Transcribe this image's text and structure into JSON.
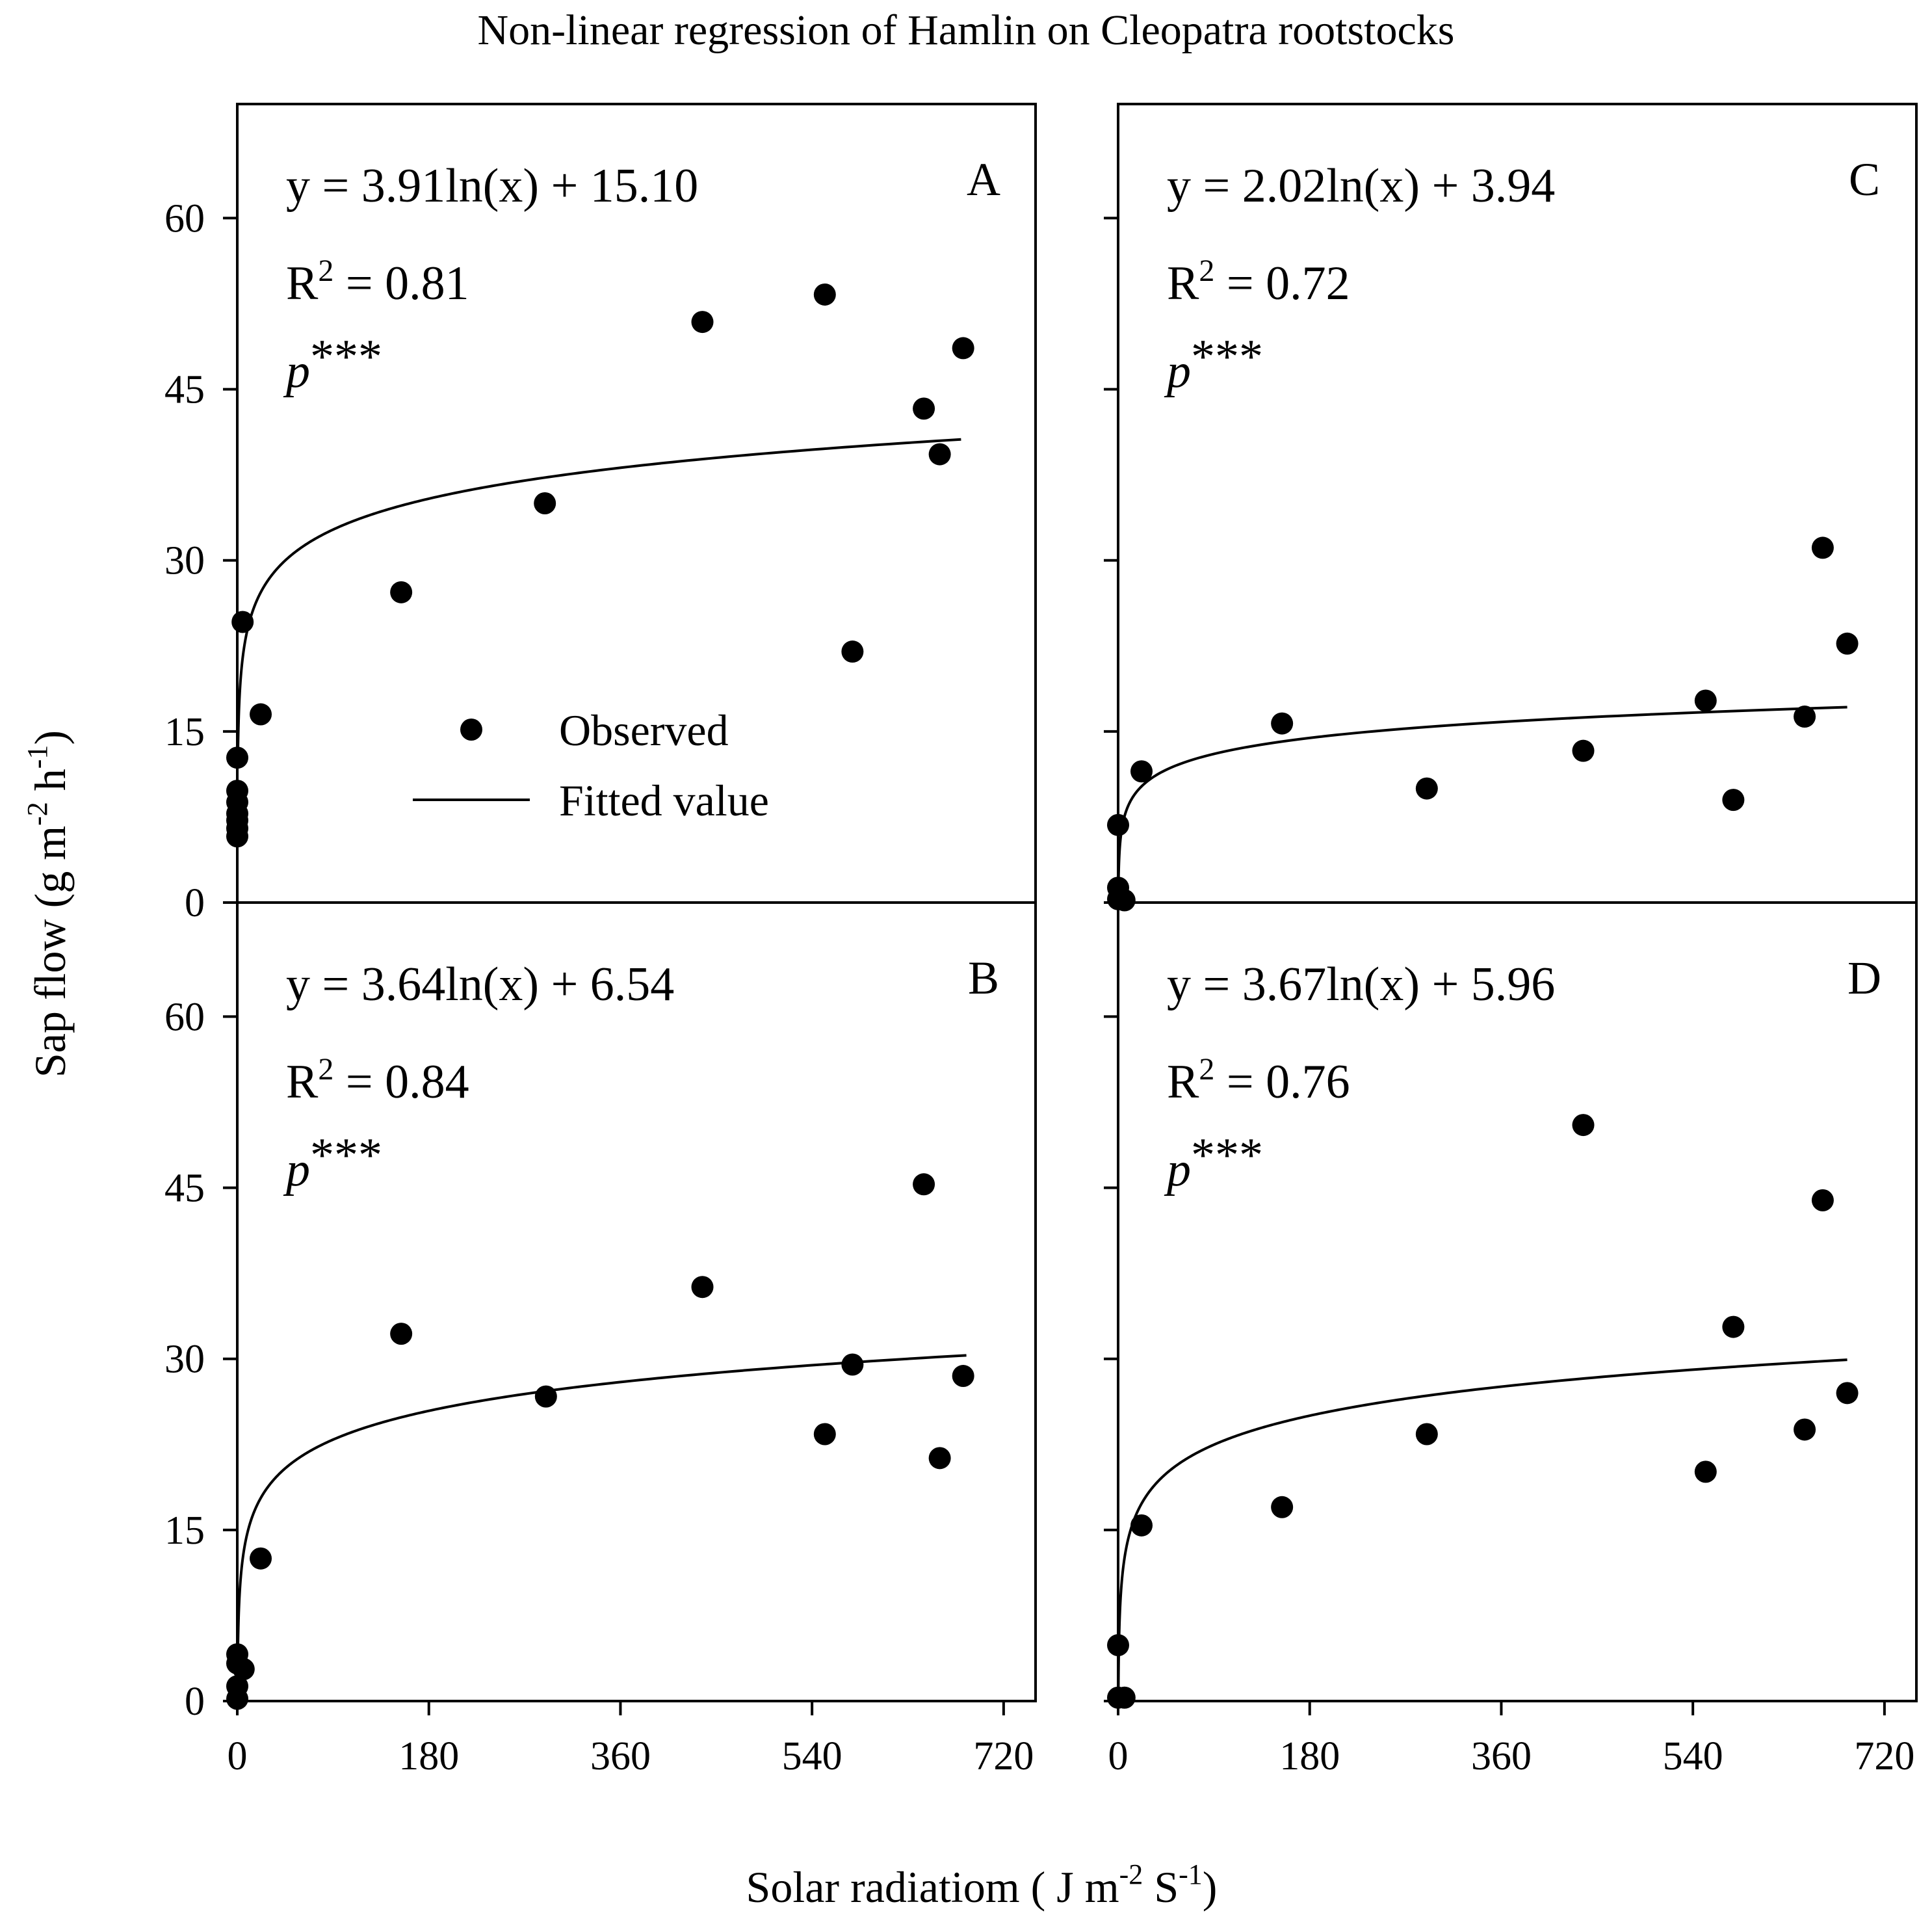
{
  "chart_data": {
    "type": "scatter",
    "title": "Non-linear regression of Hamlin on Cleopatra rootstocks",
    "ylabel": "Sap flow (g m",
    "ylabel_sup1": "-2",
    "ylabel_mid": " h",
    "ylabel_sup2": "-1",
    "ylabel_end": ")",
    "xlabel": "Solar radiatiom ( J m",
    "xlabel_sup1": "-2",
    "xlabel_mid": " S",
    "xlabel_sup2": "-1",
    "xlabel_end": ")",
    "xlim": [
      0,
      750
    ],
    "ylim": [
      0,
      70
    ],
    "xticks": [
      0,
      180,
      360,
      540,
      720
    ],
    "xtick_labels": [
      "0",
      "180",
      "360",
      "540",
      "720"
    ],
    "yticks": [
      0,
      15,
      30,
      45,
      60
    ],
    "ytick_labels": [
      "0",
      "15",
      "30",
      "45",
      "60"
    ],
    "legend": {
      "observed": "Observed",
      "fitted": "Fitted value",
      "placement": "panel-A center"
    },
    "panels": [
      {
        "letter": "A",
        "equation": "y = 3.91ln(x) + 15.10",
        "r2_prefix": "R",
        "r2_sup": "2",
        "r2_value": " = 0.81",
        "p_label": "p",
        "p_stars": "***",
        "a": 3.91,
        "b": 15.1,
        "fit_x_range": [
          0.6,
          680
        ],
        "points": [
          [
            0,
            5.8
          ],
          [
            0,
            6.5
          ],
          [
            0,
            7.2
          ],
          [
            0,
            7.8
          ],
          [
            0,
            8.8
          ],
          [
            0,
            9.8
          ],
          [
            0,
            12.7
          ],
          [
            5,
            24.6
          ],
          [
            22,
            16.5
          ],
          [
            154,
            27.2
          ],
          [
            289,
            35.0
          ],
          [
            437,
            50.9
          ],
          [
            552,
            53.3
          ],
          [
            578,
            22.0
          ],
          [
            645,
            43.3
          ],
          [
            660,
            39.3
          ],
          [
            682,
            48.6
          ]
        ]
      },
      {
        "letter": "B",
        "equation": "y = 3.64ln(x) + 6.54",
        "r2_prefix": "R",
        "r2_sup": "2",
        "r2_value": " = 0.84",
        "p_label": "p",
        "p_stars": "***",
        "a": 3.64,
        "b": 6.54,
        "fit_x_range": [
          0.2,
          685
        ],
        "points": [
          [
            0,
            0.2
          ],
          [
            0,
            1.3
          ],
          [
            0,
            3.3
          ],
          [
            0,
            4.1
          ],
          [
            6,
            2.8
          ],
          [
            22,
            12.5
          ],
          [
            154,
            32.2
          ],
          [
            290,
            26.7
          ],
          [
            437,
            36.3
          ],
          [
            552,
            23.4
          ],
          [
            578,
            29.5
          ],
          [
            645,
            45.3
          ],
          [
            660,
            21.3
          ],
          [
            682,
            28.5
          ]
        ]
      },
      {
        "letter": "C",
        "equation": "y = 2.02ln(x) + 3.94",
        "r2_prefix": "R",
        "r2_sup": "2",
        "r2_value": " = 0.72",
        "p_label": "p",
        "p_stars": "***",
        "a": 2.02,
        "b": 3.94,
        "fit_x_range": [
          0.15,
          685
        ],
        "points": [
          [
            0,
            0.3
          ],
          [
            0,
            1.3
          ],
          [
            0,
            6.8
          ],
          [
            6,
            0.2
          ],
          [
            22,
            11.5
          ],
          [
            154,
            15.7
          ],
          [
            290,
            10.0
          ],
          [
            437,
            13.3
          ],
          [
            552,
            17.7
          ],
          [
            578,
            9.0
          ],
          [
            645,
            16.3
          ],
          [
            662,
            31.1
          ],
          [
            685,
            22.7
          ]
        ]
      },
      {
        "letter": "D",
        "equation": "y = 3.67ln(x) + 5.96",
        "r2_prefix": "R",
        "r2_sup": "2",
        "r2_value": " = 0.76",
        "p_label": "p",
        "p_stars": "***",
        "a": 3.67,
        "b": 5.96,
        "fit_x_range": [
          0.2,
          685
        ],
        "points": [
          [
            0,
            0.3
          ],
          [
            0,
            4.9
          ],
          [
            6,
            0.3
          ],
          [
            22,
            15.4
          ],
          [
            154,
            17.0
          ],
          [
            290,
            23.4
          ],
          [
            437,
            50.5
          ],
          [
            552,
            20.1
          ],
          [
            578,
            32.8
          ],
          [
            645,
            23.8
          ],
          [
            662,
            43.9
          ],
          [
            685,
            27.0
          ]
        ]
      }
    ]
  }
}
